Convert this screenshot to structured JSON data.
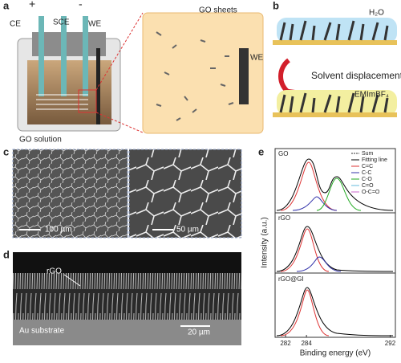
{
  "panels": {
    "a": {
      "label": "a",
      "electrodes": [
        "CE",
        "SCE",
        "WE"
      ],
      "polarity": [
        "+",
        "-"
      ],
      "solution": "GO solution",
      "inset_sheets": "GO sheets",
      "inset_electrode": "WE"
    },
    "b": {
      "label": "b",
      "top_solvent": "H₂O",
      "process": "Solvent displacement",
      "bottom_solvent": "EMImBF₄"
    },
    "c": {
      "label": "c",
      "scale_bars": [
        "100 µm",
        "50 µm"
      ]
    },
    "d": {
      "label": "d",
      "film": "rGO",
      "substrate": "Au substrate",
      "scale_bar": "20 µm"
    },
    "e": {
      "label": "e",
      "samples": [
        "GO",
        "rGO",
        "rGO@GI"
      ],
      "legend": [
        "Sum",
        "Fitting line",
        "C=C",
        "C-C",
        "C-O",
        "C=O",
        "O-C=O"
      ],
      "ylabel": "Intensity (a.u.)",
      "xlabel": "Binding energy (eV)",
      "xlim": [
        281,
        292.5
      ],
      "xticks": [
        282,
        284,
        292
      ]
    }
  }
}
